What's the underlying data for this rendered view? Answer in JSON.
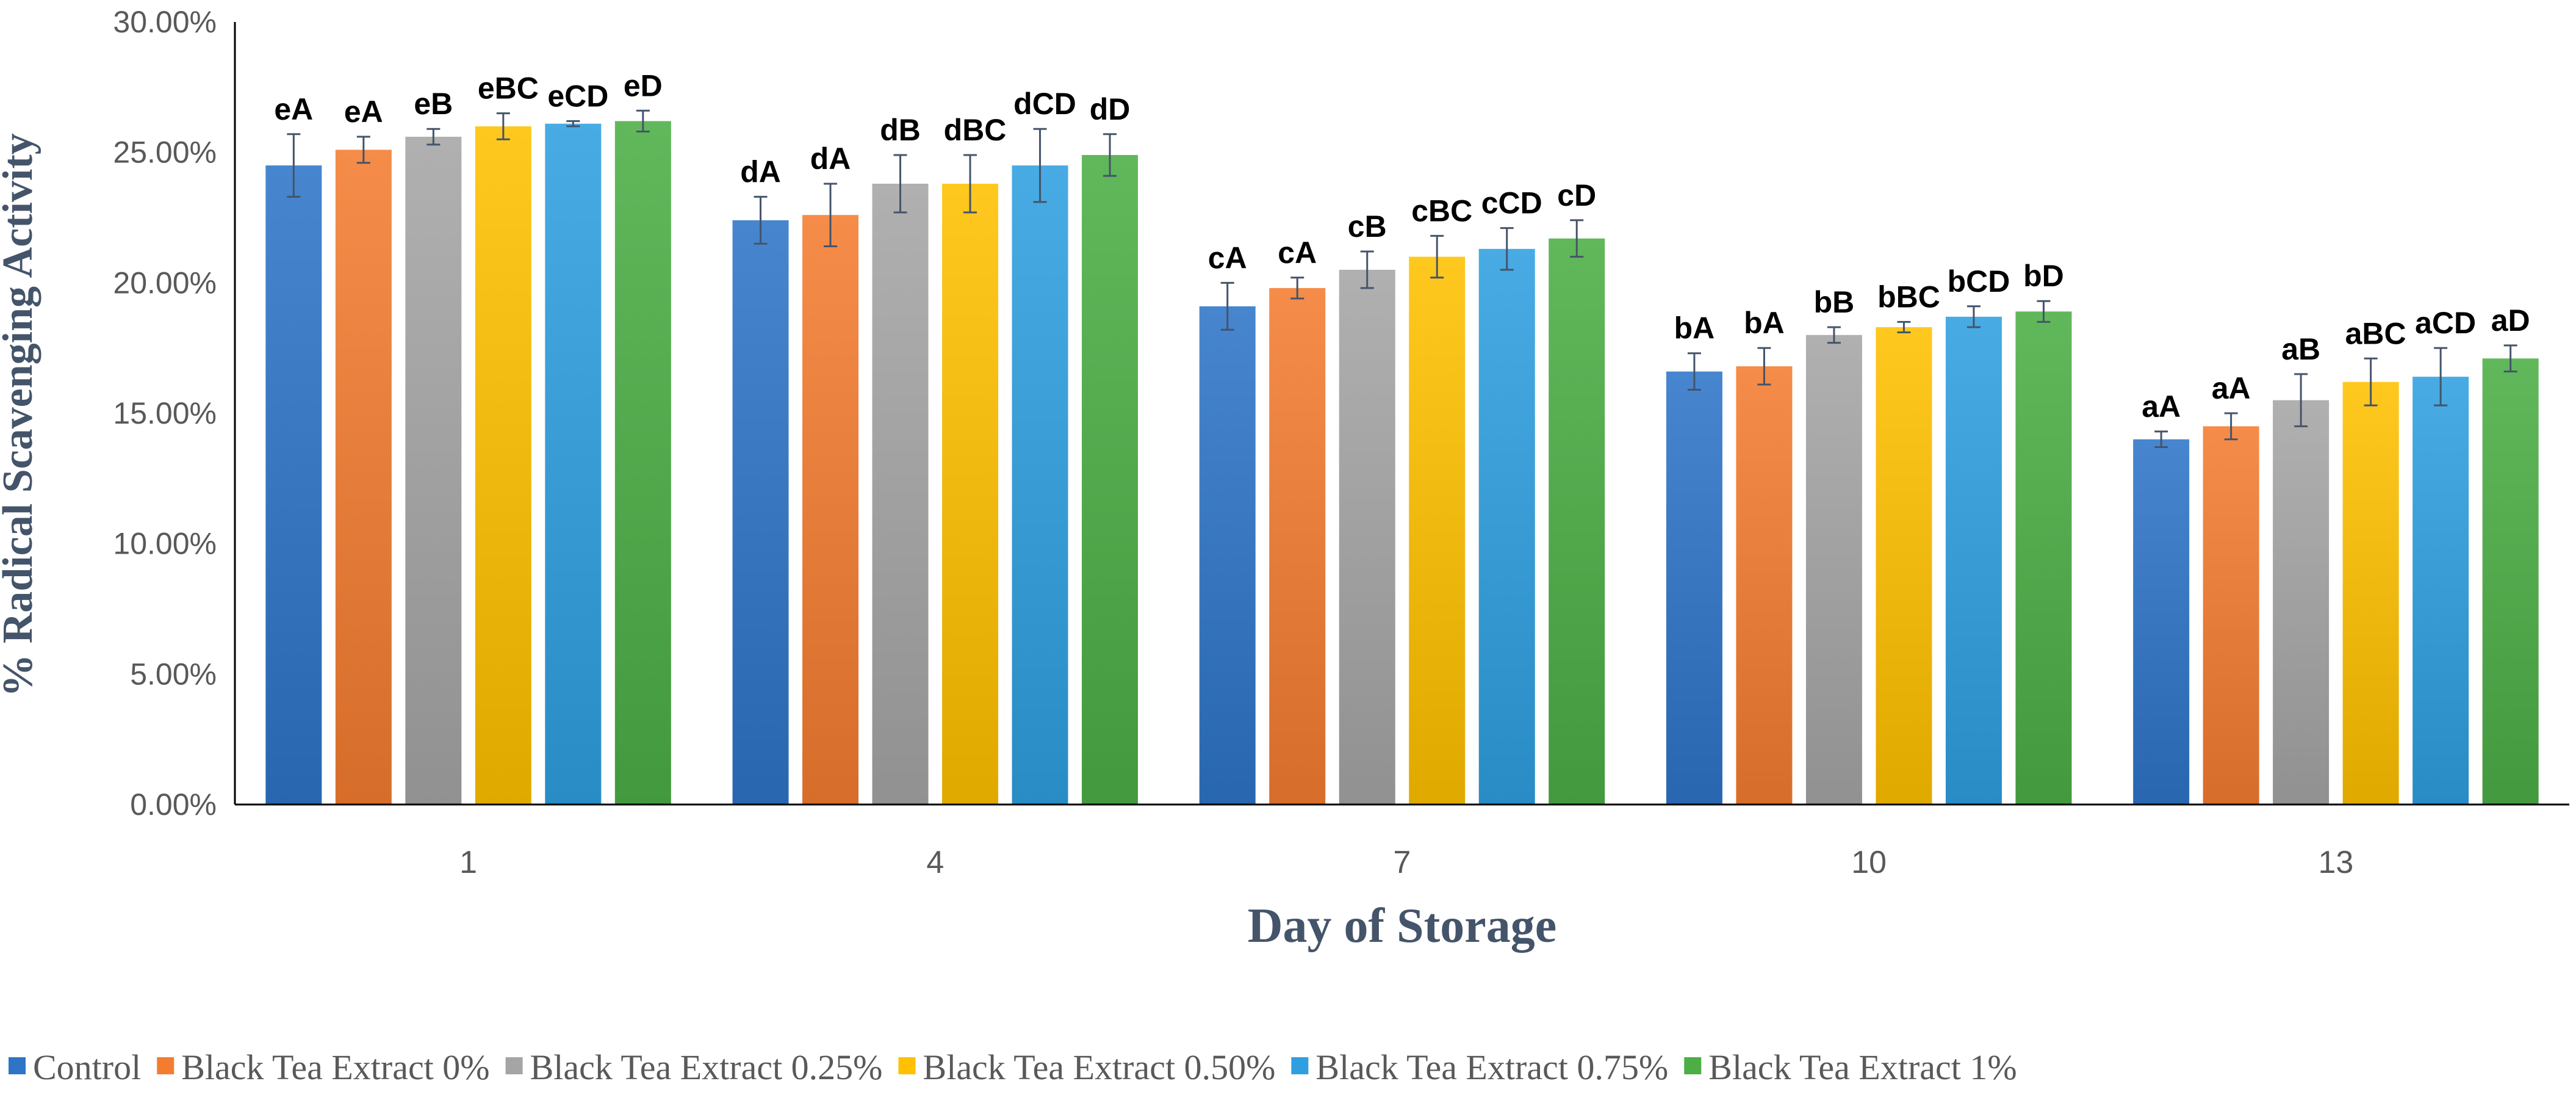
{
  "chart_data": {
    "type": "bar",
    "title": "",
    "xlabel": "Day of Storage",
    "ylabel": "% Radical Scavenging Activity",
    "ylim": [
      0,
      30
    ],
    "yticks": [
      "0.00%",
      "5.00%",
      "10.00%",
      "15.00%",
      "20.00%",
      "25.00%",
      "30.00%"
    ],
    "grid": false,
    "legend_position": "bottom",
    "categories": [
      "1",
      "4",
      "7",
      "10",
      "13"
    ],
    "series": [
      {
        "name": "Control",
        "color": "#2e75c8",
        "values": [
          24.5,
          22.4,
          19.1,
          16.6,
          14.0
        ],
        "errors": [
          1.2,
          0.9,
          0.9,
          0.7,
          0.3
        ],
        "labels": [
          "eA",
          "dA",
          "cA",
          "bA",
          "aA"
        ]
      },
      {
        "name": "Black Tea Extract 0%",
        "color": "#f47c30",
        "values": [
          25.1,
          22.6,
          19.8,
          16.8,
          14.5
        ],
        "errors": [
          0.5,
          1.2,
          0.4,
          0.7,
          0.5
        ],
        "labels": [
          "eA",
          "dA",
          "cA",
          "bA",
          "aA"
        ]
      },
      {
        "name": "Black Tea Extract 0.25%",
        "color": "#a5a5a5",
        "values": [
          25.6,
          23.8,
          20.5,
          18.0,
          15.5
        ],
        "errors": [
          0.3,
          1.1,
          0.7,
          0.3,
          1.0
        ],
        "labels": [
          "eB",
          "dB",
          "cB",
          "bB",
          "aB"
        ]
      },
      {
        "name": "Black Tea Extract 0.50%",
        "color": "#ffc000",
        "values": [
          26.0,
          23.8,
          21.0,
          18.3,
          16.2
        ],
        "errors": [
          0.5,
          1.1,
          0.8,
          0.2,
          0.9
        ],
        "labels": [
          "eBC",
          "dBC",
          "cBC",
          "bBC",
          "aBC"
        ]
      },
      {
        "name": "Black Tea Extract 0.75%",
        "color": "#2f9fe0",
        "values": [
          26.1,
          24.5,
          21.3,
          18.7,
          16.4
        ],
        "errors": [
          0.1,
          1.4,
          0.8,
          0.4,
          1.1
        ],
        "labels": [
          "eCD",
          "dCD",
          "cCD",
          "bCD",
          "aCD"
        ]
      },
      {
        "name": "Black Tea Extract 1%",
        "color": "#4cae45",
        "values": [
          26.2,
          24.9,
          21.7,
          18.9,
          17.1
        ],
        "errors": [
          0.4,
          0.8,
          0.7,
          0.4,
          0.5
        ],
        "labels": [
          "eD",
          "dD",
          "cD",
          "bD",
          "aD"
        ]
      }
    ]
  }
}
